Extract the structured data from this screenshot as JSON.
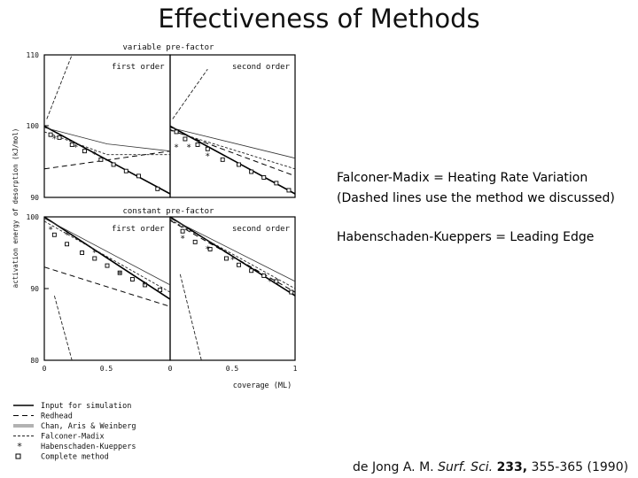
{
  "slide": {
    "title": "Effectiveness of Methods",
    "notes": [
      "Falconer-Madix = Heating Rate Variation",
      "(Dashed lines use the method we discussed)",
      "Habenschaden-Kueppers = Leading Edge"
    ],
    "citation": {
      "authors": "de Jong A. M. ",
      "journal": "Surf. Sci.",
      "volume": "233,",
      "pages": " 355-365 (",
      "year": "1990",
      "close": ")"
    }
  },
  "chart_data": {
    "type": "line",
    "ylabel": "activation energy of desorption (kJ/mol)",
    "xlabel": "coverage (ML)",
    "section_labels": {
      "top": "variable pre-factor",
      "bottom": "constant pre-factor"
    },
    "panel_titles": [
      "first order",
      "second order",
      "first order",
      "second order"
    ],
    "y_ticks_top": [
      "110",
      "100",
      "90"
    ],
    "y_ticks_bottom": [
      "100",
      "90",
      "80"
    ],
    "x_ticks": [
      "0",
      "0.5",
      "0",
      "0.5",
      "1"
    ],
    "ylim_top": [
      90,
      110
    ],
    "ylim_bottom": [
      80,
      100
    ],
    "xlim": [
      0,
      1
    ],
    "legend": [
      {
        "label": "Input for simulation",
        "style": "solid"
      },
      {
        "label": "Redhead",
        "style": "dashed"
      },
      {
        "label": "Chan, Aris & Weinberg",
        "style": "thin"
      },
      {
        "label": "Falconer-Madix",
        "style": "dash-dot"
      },
      {
        "label": "Habenschaden-Kueppers",
        "style": "star"
      },
      {
        "label": "Complete method",
        "style": "square"
      }
    ],
    "panels": [
      {
        "name": "top-first-order",
        "ylim": [
          90,
          110
        ],
        "input": [
          [
            0,
            100
          ],
          [
            1,
            90.5
          ]
        ],
        "redhead": [
          [
            0,
            94
          ],
          [
            1,
            96.5
          ]
        ],
        "chan": [
          [
            0,
            99.8
          ],
          [
            0.5,
            97.5
          ],
          [
            1,
            96.5
          ]
        ],
        "falconer": [
          [
            0,
            99.2
          ],
          [
            0.5,
            96
          ],
          [
            1,
            96
          ]
        ],
        "hk_steep": [
          [
            0.02,
            101
          ],
          [
            0.22,
            110
          ]
        ],
        "hk_points": [
          [
            0.08,
            98.2
          ],
          [
            0.25,
            97
          ],
          [
            0.4,
            96
          ]
        ],
        "complete_points": [
          [
            0.05,
            98.8
          ],
          [
            0.12,
            98.4
          ],
          [
            0.22,
            97.4
          ],
          [
            0.32,
            96.5
          ],
          [
            0.45,
            95.3
          ],
          [
            0.55,
            94.6
          ],
          [
            0.65,
            93.7
          ],
          [
            0.75,
            93
          ],
          [
            0.9,
            91.2
          ]
        ]
      },
      {
        "name": "top-second-order",
        "ylim": [
          90,
          110
        ],
        "input": [
          [
            0,
            100
          ],
          [
            1,
            90.5
          ]
        ],
        "redhead": [
          [
            0,
            99.5
          ],
          [
            1,
            93
          ]
        ],
        "chan": [
          [
            0,
            99.8
          ],
          [
            1,
            95.5
          ]
        ],
        "falconer": [
          [
            0,
            99.4
          ],
          [
            1,
            94
          ]
        ],
        "hk_steep": [
          [
            0.02,
            101
          ],
          [
            0.3,
            108
          ]
        ],
        "hk_points": [
          [
            0.05,
            97
          ],
          [
            0.15,
            97
          ],
          [
            0.3,
            95.8
          ]
        ],
        "complete_points": [
          [
            0.05,
            99.2
          ],
          [
            0.12,
            98.2
          ],
          [
            0.22,
            97.4
          ],
          [
            0.3,
            96.8
          ],
          [
            0.42,
            95.3
          ],
          [
            0.55,
            94.6
          ],
          [
            0.65,
            93.6
          ],
          [
            0.75,
            92.8
          ],
          [
            0.85,
            92
          ],
          [
            0.95,
            91
          ]
        ]
      },
      {
        "name": "bottom-first-order",
        "ylim": [
          80,
          100
        ],
        "input": [
          [
            0,
            100
          ],
          [
            1,
            88.5
          ]
        ],
        "redhead": [
          [
            0,
            93
          ],
          [
            1,
            87.5
          ]
        ],
        "chan": [
          [
            0,
            99.8
          ],
          [
            1,
            90.5
          ]
        ],
        "falconer": [
          [
            0,
            99.4
          ],
          [
            1,
            89.5
          ]
        ],
        "hk_steep": [
          [
            0.08,
            89
          ],
          [
            0.22,
            80
          ]
        ],
        "hk_points": [
          [
            0.05,
            98.2
          ],
          [
            0.18,
            97.5
          ],
          [
            0.4,
            95
          ],
          [
            0.6,
            92
          ],
          [
            0.8,
            90.5
          ]
        ],
        "complete_points": [
          [
            0.08,
            97.5
          ],
          [
            0.18,
            96.2
          ],
          [
            0.3,
            95
          ],
          [
            0.4,
            94.2
          ],
          [
            0.5,
            93.2
          ],
          [
            0.6,
            92.2
          ],
          [
            0.7,
            91.3
          ],
          [
            0.8,
            90.5
          ],
          [
            0.92,
            89.8
          ]
        ]
      },
      {
        "name": "bottom-second-order",
        "ylim": [
          80,
          100
        ],
        "input": [
          [
            0,
            100
          ],
          [
            1,
            89
          ]
        ],
        "redhead": [
          [
            0,
            99.5
          ],
          [
            1,
            89.5
          ]
        ],
        "chan": [
          [
            0,
            99.8
          ],
          [
            1,
            91
          ]
        ],
        "falconer": [
          [
            0,
            99.6
          ],
          [
            1,
            90
          ]
        ],
        "hk_steep": [
          [
            0.08,
            92
          ],
          [
            0.25,
            80
          ]
        ],
        "hk_points": [
          [
            0.1,
            97
          ],
          [
            0.3,
            95.5
          ],
          [
            0.5,
            94
          ],
          [
            0.8,
            91
          ]
        ],
        "complete_points": [
          [
            0.1,
            98
          ],
          [
            0.2,
            96.5
          ],
          [
            0.32,
            95.5
          ],
          [
            0.45,
            94.2
          ],
          [
            0.55,
            93.3
          ],
          [
            0.65,
            92.5
          ],
          [
            0.75,
            91.8
          ],
          [
            0.85,
            91
          ],
          [
            0.97,
            89.5
          ]
        ]
      }
    ]
  }
}
